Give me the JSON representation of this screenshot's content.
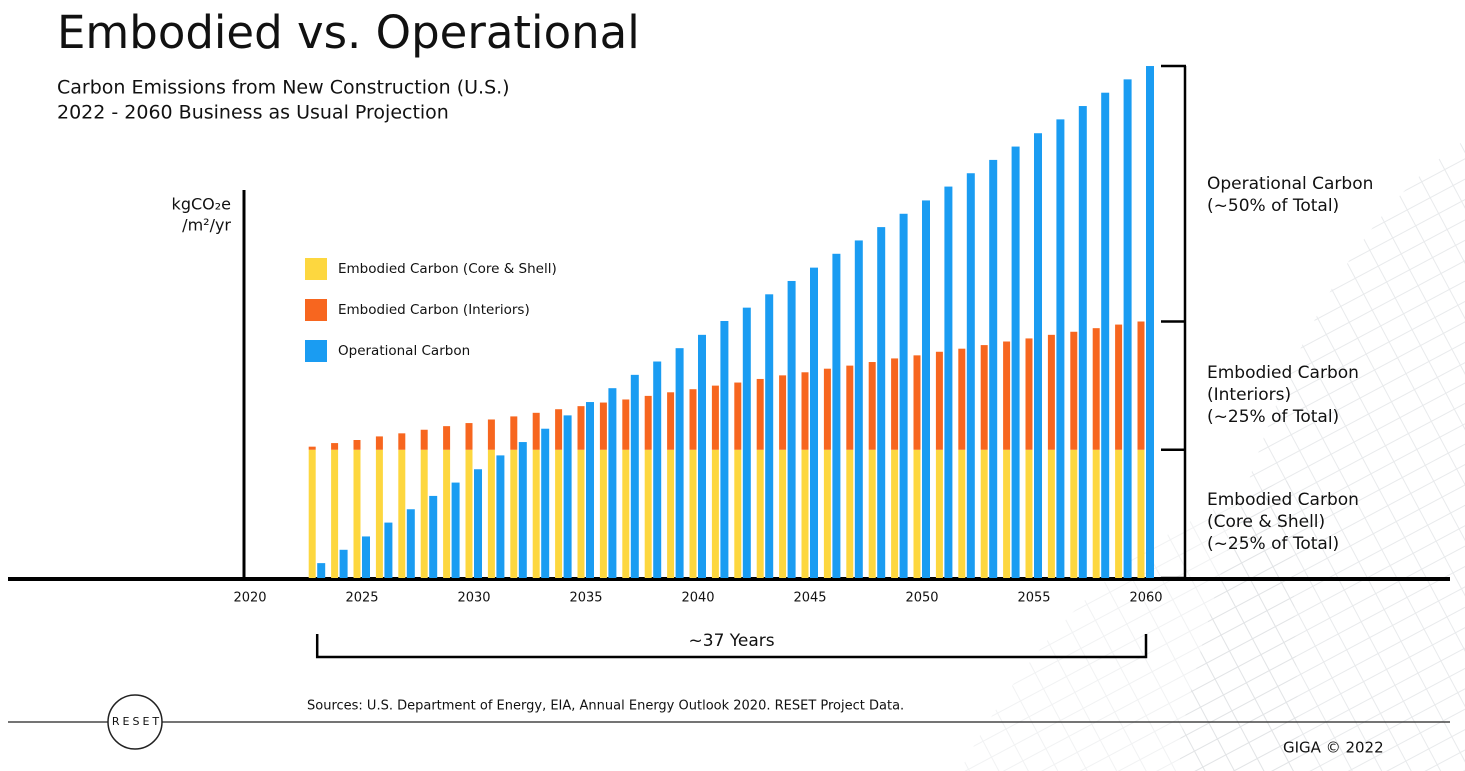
{
  "chart_data": {
    "type": "bar",
    "title": "Embodied vs. Operational",
    "subtitle": [
      "Carbon Emissions from New Construction (U.S.)",
      "2022 - 2060 Business as Usual Projection"
    ],
    "y_label": [
      "kgCO₂e",
      "/m²/yr"
    ],
    "x": [
      2023,
      2024,
      2025,
      2026,
      2027,
      2028,
      2029,
      2030,
      2031,
      2032,
      2033,
      2034,
      2035,
      2036,
      2037,
      2038,
      2039,
      2040,
      2041,
      2042,
      2043,
      2044,
      2045,
      2046,
      2047,
      2048,
      2049,
      2050,
      2051,
      2052,
      2053,
      2054,
      2055,
      2056,
      2057,
      2058,
      2059,
      2060
    ],
    "xlim": [
      2020,
      2060
    ],
    "xticks": [
      2020,
      2025,
      2030,
      2035,
      2040,
      2045,
      2050,
      2055,
      2060
    ],
    "ylim": [
      0,
      100
    ],
    "series": [
      {
        "name": "Embodied Carbon (Core & Shell)",
        "color": "#fdd73f",
        "stack": "embodied",
        "values": [
          25,
          25,
          25,
          25,
          25,
          25,
          25,
          25,
          25,
          25,
          25,
          25,
          25,
          25,
          25,
          25,
          25,
          25,
          25,
          25,
          25,
          25,
          25,
          25,
          25,
          25,
          25,
          25,
          25,
          25,
          25,
          25,
          25,
          25,
          25,
          25,
          25,
          25
        ]
      },
      {
        "name": "Embodied Carbon (Interiors)",
        "color": "#f7661f",
        "stack": "embodied",
        "values": [
          0.6,
          1.3,
          1.9,
          2.6,
          3.2,
          3.9,
          4.6,
          5.2,
          5.9,
          6.5,
          7.2,
          7.9,
          8.5,
          9.2,
          9.8,
          10.5,
          11.2,
          11.8,
          12.5,
          13.1,
          13.8,
          14.5,
          15.1,
          15.8,
          16.4,
          17.1,
          17.8,
          18.4,
          19.1,
          19.7,
          20.4,
          21.1,
          21.7,
          22.4,
          23.0,
          23.7,
          24.4,
          25.0
        ]
      },
      {
        "name": "Operational Carbon",
        "color": "#1a9cf2",
        "stack": "operational",
        "values": [
          2.9,
          5.5,
          8.1,
          10.8,
          13.4,
          16.0,
          18.6,
          21.2,
          23.9,
          26.5,
          29.1,
          31.7,
          34.3,
          37.0,
          39.6,
          42.2,
          44.8,
          47.4,
          50.1,
          52.7,
          55.3,
          57.9,
          60.5,
          63.2,
          65.8,
          68.4,
          71.0,
          73.6,
          76.3,
          78.9,
          81.5,
          84.1,
          86.7,
          89.4,
          92.0,
          94.6,
          97.2,
          99.8
        ]
      }
    ],
    "annotations": [
      [
        "Operational Carbon",
        "(~50% of Total)"
      ],
      [
        "Embodied Carbon",
        "(Interiors)",
        "(~25% of Total)"
      ],
      [
        "Embodied Carbon",
        "(Core & Shell)",
        "(~25% of Total)"
      ]
    ],
    "span_label": "~37 Years",
    "source": "Sources: U.S. Department of Energy, EIA, Annual Energy Outlook 2020. RESET Project Data.",
    "logo": "RESET",
    "footer": "GIGA © 2022"
  }
}
